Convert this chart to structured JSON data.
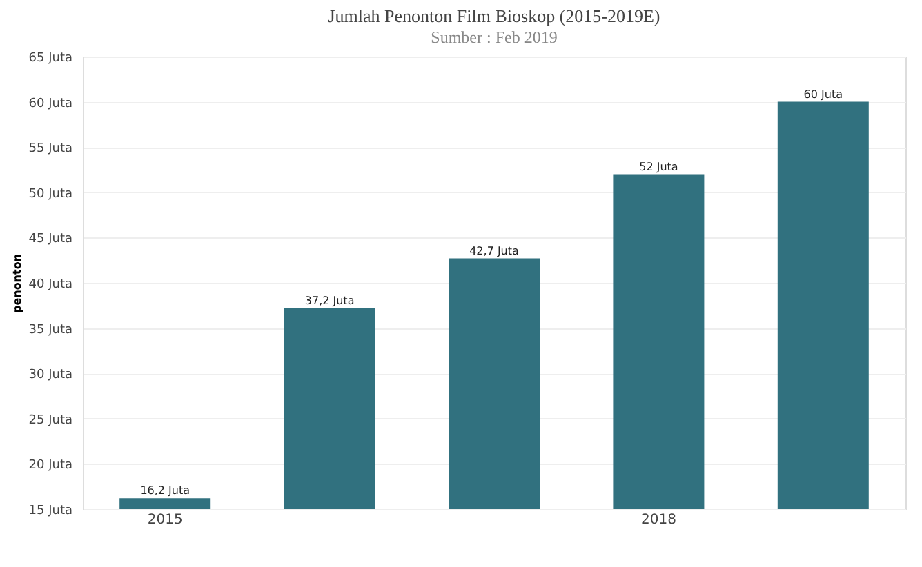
{
  "chart_data": {
    "type": "bar",
    "title": "Jumlah Penonton Film Bioskop (2015-2019E)",
    "subtitle": "Sumber : Feb 2019",
    "ylabel": "penonton",
    "categories": [
      "2015",
      null,
      null,
      "2018",
      null
    ],
    "values": [
      16.2,
      37.2,
      42.7,
      52,
      60
    ],
    "color": "#31717f",
    "value_labels": [
      "16,2 Juta",
      "37,2 Juta",
      "42,7 Juta",
      "52 Juta",
      "60 Juta"
    ],
    "ylim": [
      15,
      65
    ],
    "yticks": [
      {
        "value": 15,
        "label": "15 Juta"
      },
      {
        "value": 20,
        "label": "20 Juta"
      },
      {
        "value": 25,
        "label": "25 Juta"
      },
      {
        "value": 30,
        "label": "30 Juta"
      },
      {
        "value": 35,
        "label": "35 Juta"
      },
      {
        "value": 40,
        "label": "40 Juta"
      },
      {
        "value": 45,
        "label": "45 Juta"
      },
      {
        "value": 50,
        "label": "50 Juta"
      },
      {
        "value": 55,
        "label": "55 Juta"
      },
      {
        "value": 60,
        "label": "60 Juta"
      },
      {
        "value": 65,
        "label": "65 Juta"
      }
    ],
    "grid": "y"
  }
}
